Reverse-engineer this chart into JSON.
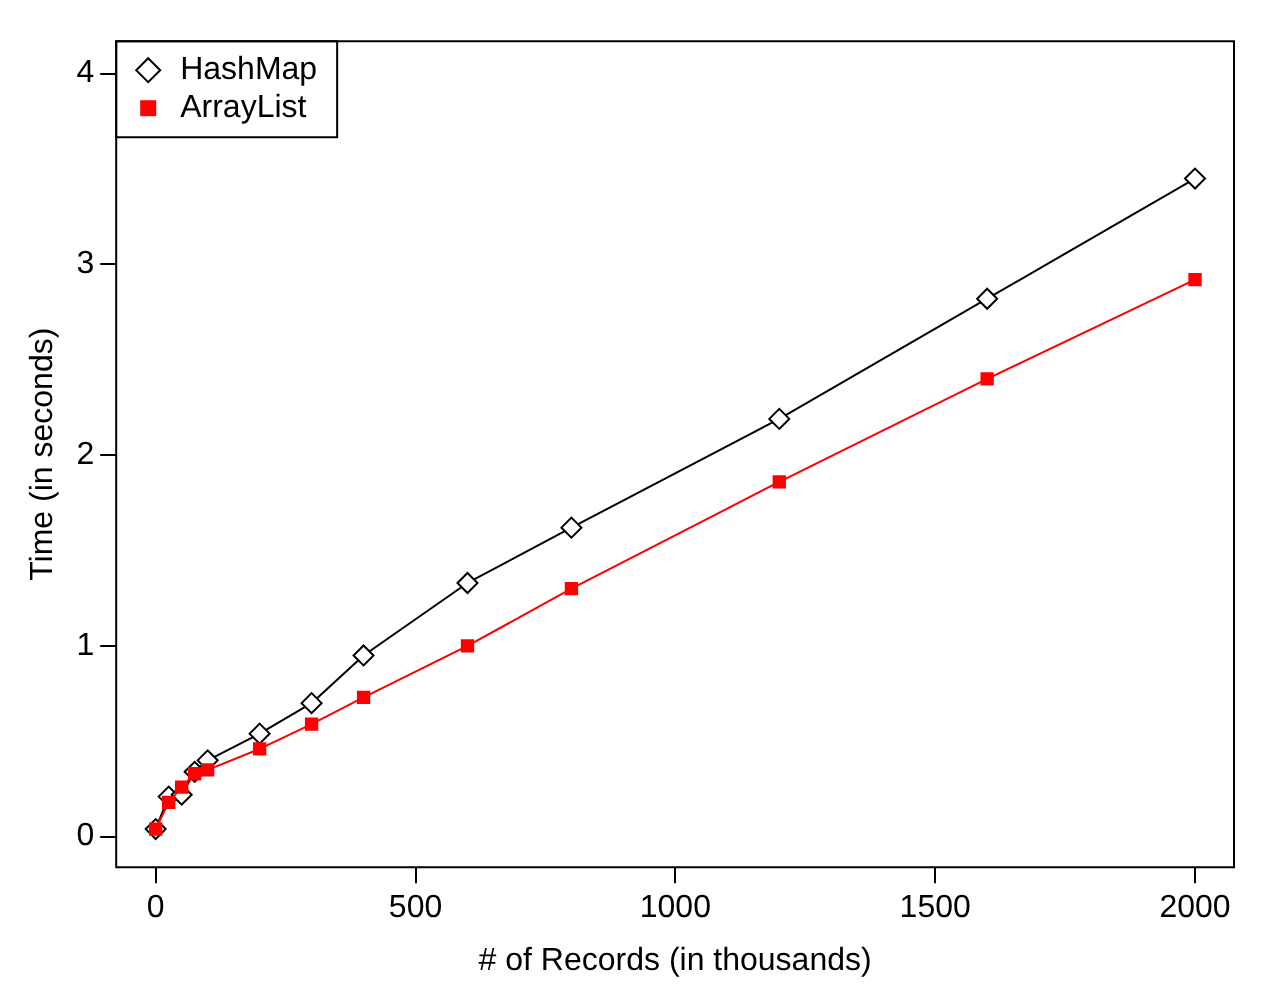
{
  "chart_data": {
    "type": "line",
    "xlabel": "# of Records (in thousands)",
    "ylabel": "Time (in seconds)",
    "x": [
      0,
      25,
      50,
      75,
      100,
      200,
      300,
      400,
      600,
      800,
      1200,
      1600,
      2000
    ],
    "series": [
      {
        "name": "HashMap",
        "color": "#000000",
        "marker": "diamond",
        "values": [
          0.04,
          0.21,
          0.22,
          0.34,
          0.4,
          0.54,
          0.7,
          0.95,
          1.33,
          1.62,
          2.19,
          2.82,
          3.45
        ]
      },
      {
        "name": "ArrayList",
        "color": "#ff0000",
        "marker": "square",
        "values": [
          0.04,
          0.18,
          0.26,
          0.33,
          0.35,
          0.46,
          0.59,
          0.73,
          1.0,
          1.3,
          1.86,
          2.4,
          2.92
        ]
      }
    ],
    "xlim": [
      -76,
      2075
    ],
    "ylim": [
      -0.16,
      4.17
    ],
    "xticks": [
      0,
      500,
      1000,
      1500,
      2000
    ],
    "yticks": [
      0,
      1,
      2,
      3,
      4
    ],
    "grid": false,
    "legend": "top left",
    "line_style": "solid"
  }
}
